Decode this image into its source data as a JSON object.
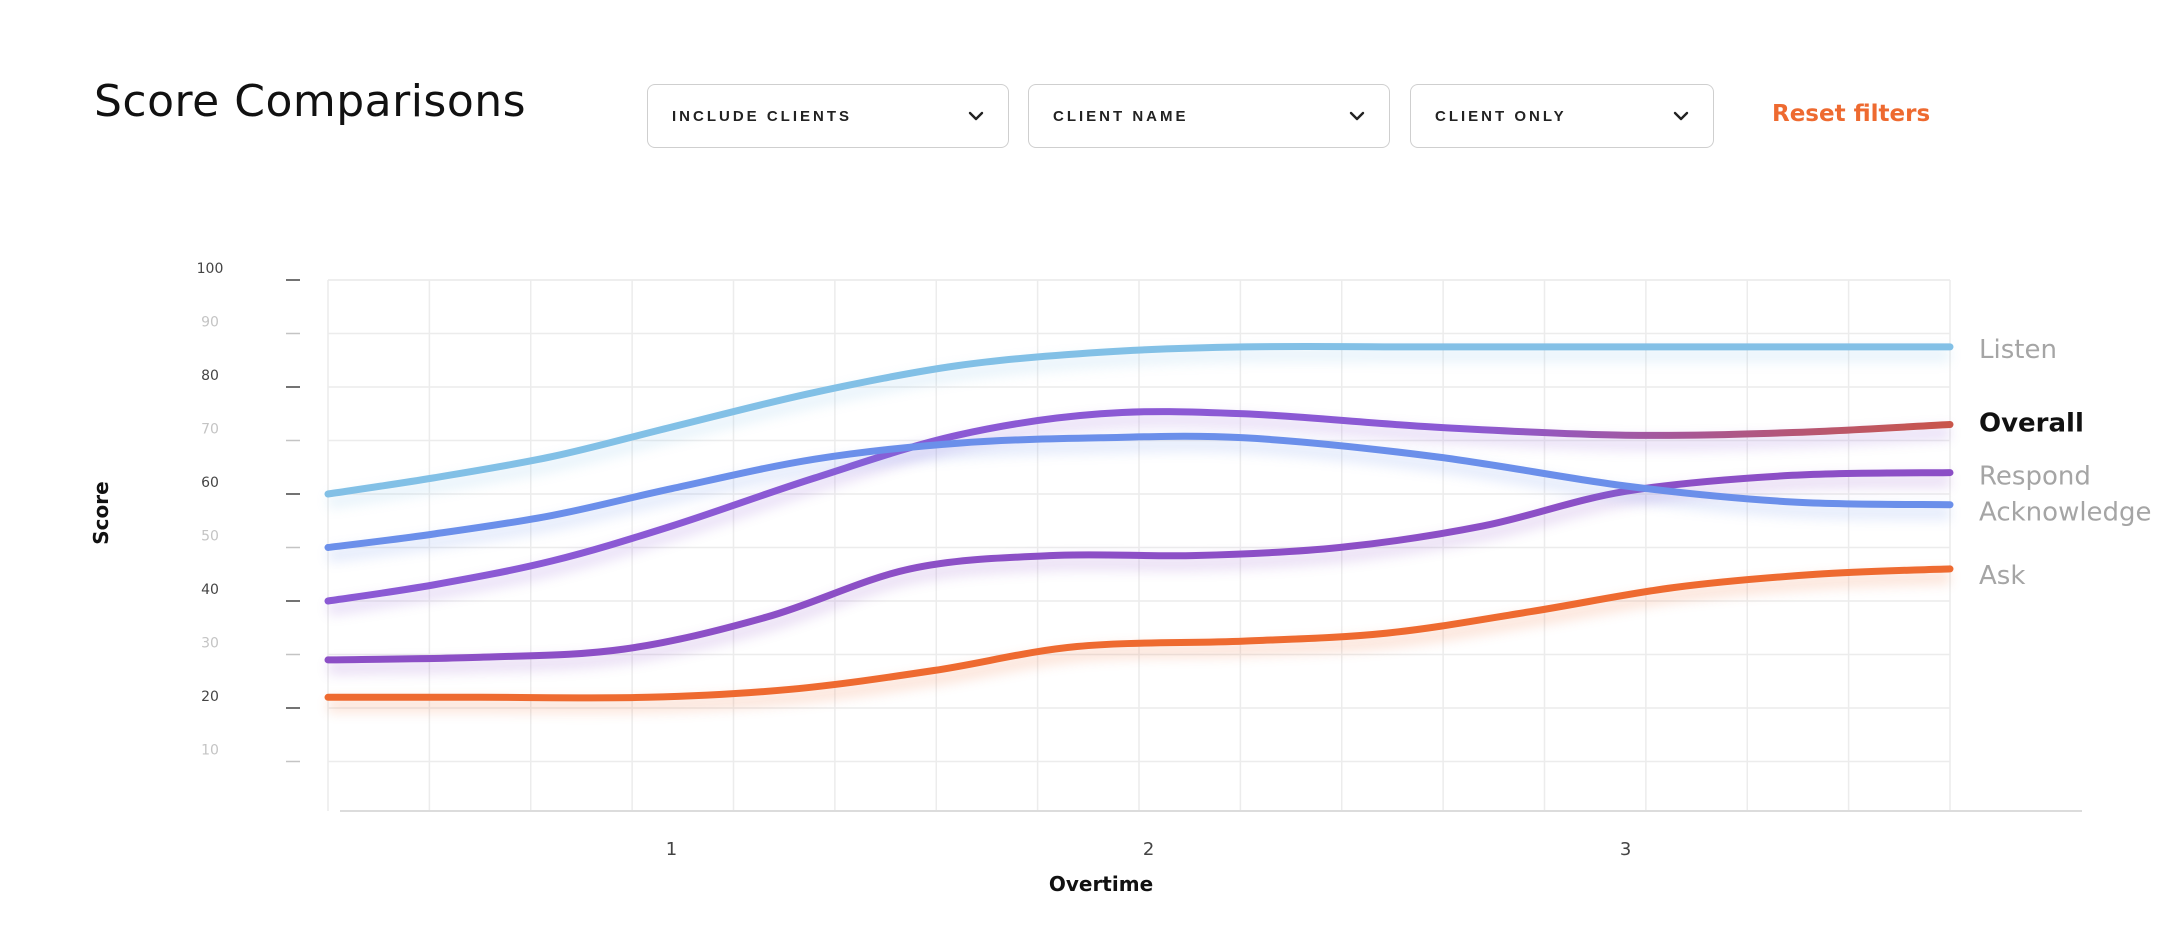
{
  "page": {
    "title": "Score Comparisons"
  },
  "filters": [
    {
      "label": "INCLUDE CLIENTS",
      "icon": "chevron-down-icon"
    },
    {
      "label": "CLIENT NAME",
      "icon": "chevron-down-icon"
    },
    {
      "label": "CLIENT ONLY",
      "icon": "chevron-down-icon"
    }
  ],
  "reset_label": "Reset filters",
  "colors": {
    "accent": "#ee6a30",
    "grid": "#ececec",
    "muted_label": "#a5a5a5",
    "active_label": "#111111"
  },
  "chart_data": {
    "type": "line",
    "xlabel": "Overtime",
    "ylabel": "Score",
    "x_ticks": [
      1,
      2,
      3
    ],
    "x_domain": [
      0.28,
      3.68
    ],
    "ylim": [
      0,
      100
    ],
    "y_ticks": [
      {
        "value": 100,
        "label": "100",
        "strong": true
      },
      {
        "value": 90,
        "label": "90",
        "strong": false
      },
      {
        "value": 80,
        "label": "80",
        "strong": true
      },
      {
        "value": 70,
        "label": "70",
        "strong": false
      },
      {
        "value": 60,
        "label": "60",
        "strong": true
      },
      {
        "value": 50,
        "label": "50",
        "strong": false
      },
      {
        "value": 40,
        "label": "40",
        "strong": true
      },
      {
        "value": 30,
        "label": "30",
        "strong": false
      },
      {
        "value": 20,
        "label": "20",
        "strong": true
      },
      {
        "value": 10,
        "label": "10",
        "strong": false
      }
    ],
    "grid": true,
    "legend_placement": "right",
    "series": [
      {
        "name": "Listen",
        "color": "#82c0e6",
        "active": false,
        "x": [
          0.28,
          0.5,
          0.75,
          1.0,
          1.3,
          1.6,
          1.9,
          2.2,
          2.6,
          3.0,
          3.35,
          3.68
        ],
        "y": [
          60,
          63,
          67,
          72.5,
          79,
          84,
          86.5,
          87.5,
          87.5,
          87.5,
          87.5,
          87.5
        ]
      },
      {
        "name": "Overall",
        "color": "#8b59d4",
        "color_end": "#c9554a",
        "active": true,
        "x": [
          0.28,
          0.5,
          0.75,
          1.0,
          1.3,
          1.6,
          1.9,
          2.2,
          2.6,
          3.0,
          3.35,
          3.68
        ],
        "y": [
          40,
          43,
          47.5,
          54,
          63,
          71,
          75,
          75,
          72.5,
          71,
          71.5,
          73
        ]
      },
      {
        "name": "Respond",
        "color": "#8c4fc6",
        "active": false,
        "x": [
          0.28,
          0.6,
          0.9,
          1.2,
          1.5,
          1.8,
          2.1,
          2.4,
          2.7,
          3.0,
          3.35,
          3.68
        ],
        "y": [
          29,
          29.5,
          31,
          37,
          46,
          48.5,
          48.5,
          50,
          54,
          60.5,
          63.5,
          64
        ]
      },
      {
        "name": "Acknowledge",
        "color": "#6b8fea",
        "active": false,
        "x": [
          0.28,
          0.5,
          0.75,
          1.0,
          1.3,
          1.6,
          1.9,
          2.2,
          2.6,
          3.0,
          3.35,
          3.68
        ],
        "y": [
          50,
          52.5,
          56,
          61,
          66.5,
          69.5,
          70.5,
          70.5,
          67,
          61.5,
          58.5,
          58
        ]
      },
      {
        "name": "Ask",
        "color": "#ee6a30",
        "active": false,
        "x": [
          0.28,
          0.6,
          0.95,
          1.25,
          1.55,
          1.85,
          2.2,
          2.5,
          2.8,
          3.1,
          3.4,
          3.68
        ],
        "y": [
          22,
          22,
          22,
          23.5,
          27,
          31.5,
          32.5,
          34,
          38,
          42.5,
          45,
          46
        ]
      }
    ]
  }
}
